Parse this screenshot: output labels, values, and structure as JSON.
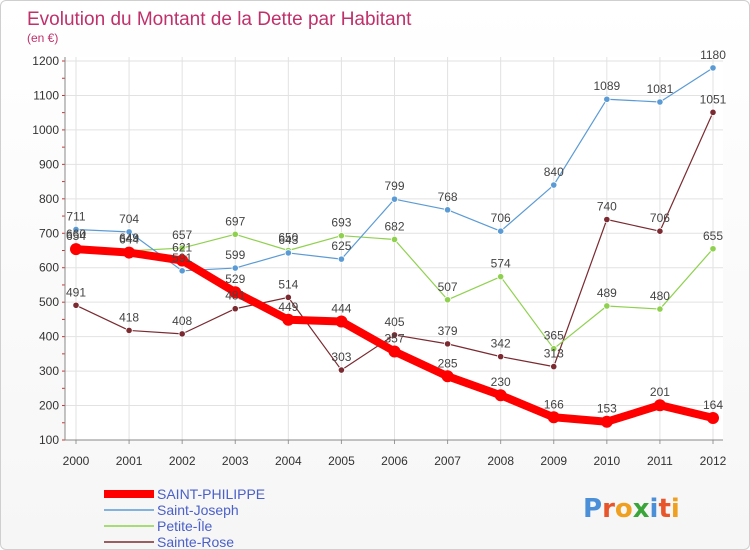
{
  "chart_data": {
    "type": "line",
    "title": "Evolution du Montant de la Dette par Habitant",
    "subtitle": "(en €)",
    "categories": [
      "2000",
      "2001",
      "2002",
      "2003",
      "2004",
      "2005",
      "2006",
      "2007",
      "2008",
      "2009",
      "2010",
      "2011",
      "2012"
    ],
    "ylim": [
      100,
      1200
    ],
    "yticks": [
      100,
      200,
      300,
      400,
      500,
      600,
      700,
      800,
      900,
      1000,
      1100,
      1200
    ],
    "grid": true,
    "legend_position": "bottom-left",
    "series": [
      {
        "name": "SAINT-PHILIPPE",
        "color": "#ff0000",
        "values": [
          654,
          644,
          621,
          529,
          449,
          444,
          357,
          285,
          230,
          166,
          153,
          201,
          164
        ]
      },
      {
        "name": "Saint-Joseph",
        "color": "#5b9bd5",
        "values": [
          711,
          704,
          591,
          599,
          643,
          625,
          799,
          768,
          706,
          840,
          1089,
          1081,
          1180
        ]
      },
      {
        "name": "Petite-Île",
        "color": "#8fd14f",
        "values": [
          660,
          649,
          657,
          697,
          650,
          693,
          682,
          507,
          574,
          365,
          489,
          480,
          655
        ]
      },
      {
        "name": "Sainte-Rose",
        "color": "#7a2a30",
        "values": [
          491,
          418,
          408,
          481,
          514,
          303,
          405,
          379,
          342,
          313,
          740,
          706,
          1051
        ]
      }
    ]
  },
  "logo": {
    "letters": [
      "P",
      "r",
      "o",
      "x",
      "i",
      "t",
      "i"
    ],
    "colors": [
      "#4a8fd8",
      "#e8552b",
      "#f0a020",
      "#3aa63a",
      "#4a8fd8",
      "#e8552b",
      "#f0a020"
    ]
  }
}
